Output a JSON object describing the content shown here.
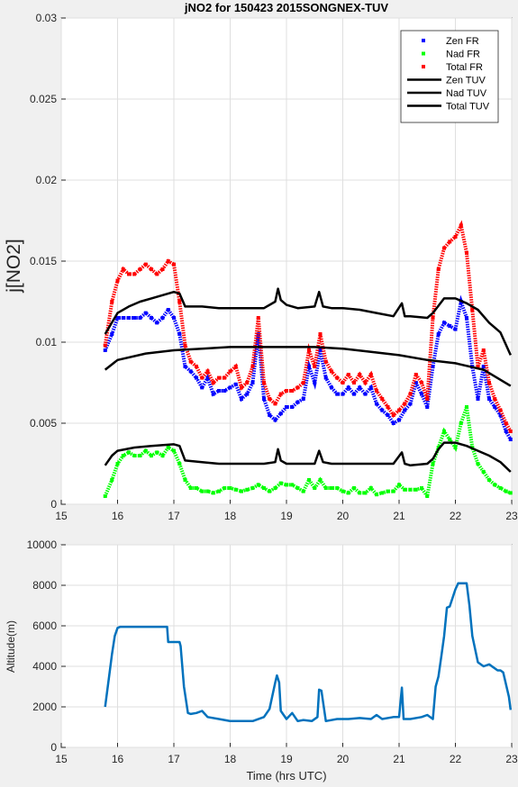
{
  "chart_data": [
    {
      "type": "scatter",
      "title": "jNO2 for 150423 2015SONGNEX-TUV",
      "xlabel": "",
      "ylabel": "j[NO2]",
      "xlim": [
        15,
        23
      ],
      "ylim": [
        0,
        0.03
      ],
      "xticks": [
        "15",
        "16",
        "17",
        "18",
        "19",
        "20",
        "21",
        "22",
        "23"
      ],
      "yticks": [
        "0",
        "0.005",
        "0.01",
        "0.015",
        "0.02",
        "0.025",
        "0.03"
      ],
      "grid": true,
      "legend": "top-right",
      "series": [
        {
          "name": "Zen FR",
          "kind": "points",
          "color": "#0000ff",
          "x": [
            15.78,
            15.9,
            16.0,
            16.1,
            16.2,
            16.3,
            16.4,
            16.5,
            16.6,
            16.7,
            16.8,
            16.9,
            17.0,
            17.1,
            17.2,
            17.3,
            17.4,
            17.5,
            17.6,
            17.7,
            17.8,
            17.9,
            18.0,
            18.1,
            18.2,
            18.3,
            18.4,
            18.5,
            18.6,
            18.7,
            18.8,
            18.9,
            19.0,
            19.1,
            19.2,
            19.3,
            19.4,
            19.5,
            19.6,
            19.7,
            19.8,
            19.9,
            20.0,
            20.1,
            20.2,
            20.3,
            20.4,
            20.5,
            20.6,
            20.7,
            20.8,
            20.9,
            21.0,
            21.1,
            21.2,
            21.3,
            21.4,
            21.5,
            21.6,
            21.7,
            21.8,
            21.9,
            22.0,
            22.1,
            22.2,
            22.3,
            22.4,
            22.5,
            22.6,
            22.7,
            22.8,
            22.9,
            22.98
          ],
          "y": [
            0.0095,
            0.0105,
            0.0115,
            0.0115,
            0.0115,
            0.0115,
            0.0115,
            0.0118,
            0.0115,
            0.0112,
            0.0115,
            0.012,
            0.0115,
            0.0105,
            0.0085,
            0.0082,
            0.0078,
            0.0072,
            0.0078,
            0.0068,
            0.007,
            0.007,
            0.0072,
            0.0074,
            0.0065,
            0.0068,
            0.0075,
            0.0105,
            0.0065,
            0.0055,
            0.0052,
            0.0056,
            0.006,
            0.006,
            0.0063,
            0.0065,
            0.0085,
            0.0075,
            0.0095,
            0.0078,
            0.0072,
            0.0068,
            0.0068,
            0.0072,
            0.0068,
            0.0072,
            0.0068,
            0.0072,
            0.0062,
            0.0058,
            0.0055,
            0.005,
            0.0052,
            0.0058,
            0.0062,
            0.0075,
            0.0068,
            0.006,
            0.0085,
            0.0105,
            0.0112,
            0.011,
            0.0108,
            0.0125,
            0.0115,
            0.0085,
            0.0065,
            0.0085,
            0.0065,
            0.006,
            0.0055,
            0.0045,
            0.004
          ]
        },
        {
          "name": "Nad FR",
          "kind": "points",
          "color": "#00ff00",
          "x": [
            15.78,
            15.9,
            16.0,
            16.1,
            16.2,
            16.3,
            16.4,
            16.5,
            16.6,
            16.7,
            16.8,
            16.9,
            17.0,
            17.1,
            17.2,
            17.3,
            17.4,
            17.5,
            17.6,
            17.7,
            17.8,
            17.9,
            18.0,
            18.1,
            18.2,
            18.3,
            18.4,
            18.5,
            18.6,
            18.7,
            18.8,
            18.9,
            19.0,
            19.1,
            19.2,
            19.3,
            19.4,
            19.5,
            19.6,
            19.7,
            19.8,
            19.9,
            20.0,
            20.1,
            20.2,
            20.3,
            20.4,
            20.5,
            20.6,
            20.7,
            20.8,
            20.9,
            21.0,
            21.1,
            21.2,
            21.3,
            21.4,
            21.5,
            21.6,
            21.7,
            21.8,
            21.9,
            22.0,
            22.1,
            22.2,
            22.3,
            22.4,
            22.5,
            22.6,
            22.7,
            22.8,
            22.9,
            22.98
          ],
          "y": [
            0.0005,
            0.0015,
            0.0025,
            0.003,
            0.0032,
            0.003,
            0.003,
            0.0033,
            0.003,
            0.0032,
            0.003,
            0.0035,
            0.0033,
            0.0025,
            0.0015,
            0.001,
            0.001,
            0.0008,
            0.0008,
            0.0007,
            0.0008,
            0.001,
            0.001,
            0.0009,
            0.0008,
            0.0009,
            0.001,
            0.0012,
            0.001,
            0.0008,
            0.001,
            0.0013,
            0.0012,
            0.0012,
            0.001,
            0.0008,
            0.0015,
            0.001,
            0.0015,
            0.001,
            0.001,
            0.001,
            0.0008,
            0.0007,
            0.001,
            0.0007,
            0.0007,
            0.001,
            0.0006,
            0.0007,
            0.0008,
            0.0008,
            0.0012,
            0.0009,
            0.0009,
            0.0009,
            0.001,
            0.0005,
            0.0025,
            0.0035,
            0.0045,
            0.004,
            0.0035,
            0.005,
            0.006,
            0.0035,
            0.0025,
            0.002,
            0.0015,
            0.0012,
            0.001,
            0.0008,
            0.0007
          ]
        },
        {
          "name": "Total FR",
          "kind": "points",
          "color": "#ff0000",
          "x": [
            15.78,
            15.9,
            16.0,
            16.1,
            16.2,
            16.3,
            16.4,
            16.5,
            16.6,
            16.7,
            16.8,
            16.9,
            17.0,
            17.1,
            17.2,
            17.3,
            17.4,
            17.5,
            17.6,
            17.7,
            17.8,
            17.9,
            18.0,
            18.1,
            18.2,
            18.3,
            18.4,
            18.5,
            18.6,
            18.7,
            18.8,
            18.9,
            19.0,
            19.1,
            19.2,
            19.3,
            19.4,
            19.5,
            19.6,
            19.7,
            19.8,
            19.9,
            20.0,
            20.1,
            20.2,
            20.3,
            20.4,
            20.5,
            20.6,
            20.7,
            20.8,
            20.9,
            21.0,
            21.1,
            21.2,
            21.3,
            21.4,
            21.5,
            21.6,
            21.7,
            21.8,
            21.9,
            22.0,
            22.1,
            22.2,
            22.3,
            22.4,
            22.5,
            22.6,
            22.7,
            22.8,
            22.9,
            22.98
          ],
          "y": [
            0.0098,
            0.0125,
            0.0138,
            0.0145,
            0.0142,
            0.0142,
            0.0145,
            0.0148,
            0.0145,
            0.0142,
            0.0145,
            0.015,
            0.0148,
            0.0125,
            0.0098,
            0.0088,
            0.0085,
            0.0078,
            0.0082,
            0.0075,
            0.0078,
            0.0078,
            0.0082,
            0.0085,
            0.0072,
            0.0075,
            0.0085,
            0.0115,
            0.0075,
            0.0065,
            0.0062,
            0.0068,
            0.007,
            0.007,
            0.0072,
            0.0075,
            0.0095,
            0.0085,
            0.0105,
            0.0088,
            0.0082,
            0.0078,
            0.0075,
            0.008,
            0.0075,
            0.008,
            0.0075,
            0.008,
            0.007,
            0.0065,
            0.006,
            0.0055,
            0.0058,
            0.0062,
            0.0068,
            0.008,
            0.0075,
            0.0065,
            0.0115,
            0.0145,
            0.0158,
            0.0162,
            0.0165,
            0.0172,
            0.0155,
            0.012,
            0.0085,
            0.0095,
            0.0075,
            0.0065,
            0.0058,
            0.005,
            0.0045
          ]
        },
        {
          "name": "Zen TUV",
          "kind": "line",
          "color": "#000000",
          "x": [
            15.78,
            16.0,
            16.2,
            16.4,
            16.6,
            16.8,
            17.0,
            17.1,
            17.2,
            17.5,
            17.8,
            18.0,
            18.3,
            18.6,
            18.8,
            18.85,
            18.9,
            19.0,
            19.2,
            19.5,
            19.58,
            19.65,
            19.8,
            20.0,
            20.3,
            20.6,
            20.9,
            21.05,
            21.1,
            21.2,
            21.5,
            21.6,
            21.8,
            22.0,
            22.2,
            22.4,
            22.6,
            22.8,
            22.98
          ],
          "y": [
            0.0105,
            0.0118,
            0.0122,
            0.0125,
            0.0127,
            0.0129,
            0.0131,
            0.013,
            0.0122,
            0.0122,
            0.0121,
            0.0121,
            0.0121,
            0.0121,
            0.0125,
            0.0133,
            0.0126,
            0.0123,
            0.0121,
            0.0122,
            0.0131,
            0.0122,
            0.0121,
            0.0121,
            0.012,
            0.0118,
            0.0116,
            0.0124,
            0.0116,
            0.0116,
            0.0115,
            0.0118,
            0.0127,
            0.0127,
            0.0124,
            0.012,
            0.0112,
            0.0106,
            0.0092
          ]
        },
        {
          "name": "Nad TUV",
          "kind": "line",
          "color": "#000000",
          "x": [
            15.78,
            16.0,
            16.5,
            17.0,
            17.5,
            18.0,
            18.5,
            19.0,
            19.5,
            20.0,
            20.5,
            21.0,
            21.5,
            22.0,
            22.5,
            22.98
          ],
          "y": [
            0.0083,
            0.0089,
            0.0093,
            0.0095,
            0.0096,
            0.0097,
            0.0097,
            0.0097,
            0.0097,
            0.0096,
            0.0094,
            0.0092,
            0.0089,
            0.0087,
            0.0083,
            0.0073
          ]
        },
        {
          "name": "Total TUV",
          "kind": "line",
          "color": "#000000",
          "x": [
            15.78,
            15.9,
            16.0,
            16.3,
            16.6,
            17.0,
            17.1,
            17.2,
            17.5,
            17.8,
            18.0,
            18.3,
            18.6,
            18.8,
            18.85,
            18.9,
            19.0,
            19.3,
            19.5,
            19.58,
            19.65,
            19.8,
            20.2,
            20.6,
            20.9,
            21.05,
            21.1,
            21.2,
            21.5,
            21.6,
            21.7,
            21.8,
            22.0,
            22.2,
            22.4,
            22.6,
            22.8,
            22.98
          ],
          "y": [
            0.0024,
            0.003,
            0.0033,
            0.0035,
            0.0036,
            0.0037,
            0.0036,
            0.0027,
            0.0026,
            0.0025,
            0.0025,
            0.0025,
            0.0025,
            0.0026,
            0.0034,
            0.0027,
            0.0025,
            0.0025,
            0.0025,
            0.0033,
            0.0026,
            0.0025,
            0.0025,
            0.0025,
            0.0025,
            0.0032,
            0.0025,
            0.0024,
            0.0025,
            0.0028,
            0.0034,
            0.0038,
            0.0038,
            0.0036,
            0.0033,
            0.003,
            0.0026,
            0.002
          ]
        }
      ]
    },
    {
      "type": "line",
      "title": "",
      "xlabel": "Time (hrs UTC)",
      "ylabel": "Altitude(m)",
      "xlim": [
        15,
        23
      ],
      "ylim": [
        0,
        10000
      ],
      "xticks": [
        "15",
        "16",
        "17",
        "18",
        "19",
        "20",
        "21",
        "22",
        "23"
      ],
      "yticks": [
        "0",
        "2000",
        "4000",
        "6000",
        "8000",
        "10000"
      ],
      "grid": true,
      "series": [
        {
          "color": "#0072bd",
          "x": [
            15.78,
            15.85,
            15.9,
            15.95,
            16.0,
            16.05,
            16.5,
            16.88,
            16.9,
            17.1,
            17.12,
            17.18,
            17.25,
            17.3,
            17.4,
            17.5,
            17.6,
            17.8,
            18.0,
            18.2,
            18.4,
            18.6,
            18.7,
            18.8,
            18.83,
            18.87,
            18.9,
            19.0,
            19.1,
            19.2,
            19.3,
            19.45,
            19.55,
            19.58,
            19.62,
            19.7,
            19.9,
            20.1,
            20.3,
            20.5,
            20.6,
            20.7,
            20.9,
            21.0,
            21.05,
            21.08,
            21.2,
            21.4,
            21.5,
            21.6,
            21.65,
            21.7,
            21.75,
            21.8,
            21.85,
            21.9,
            22.0,
            22.05,
            22.1,
            22.2,
            22.25,
            22.3,
            22.4,
            22.5,
            22.6,
            22.75,
            22.8,
            22.85,
            22.95,
            22.98
          ],
          "y": [
            2000,
            3500,
            4600,
            5500,
            5900,
            5950,
            5950,
            5950,
            5200,
            5200,
            5000,
            3000,
            1700,
            1650,
            1700,
            1800,
            1500,
            1400,
            1300,
            1300,
            1300,
            1500,
            1900,
            3200,
            3550,
            3200,
            1800,
            1400,
            1700,
            1300,
            1350,
            1300,
            1500,
            2850,
            2800,
            1300,
            1400,
            1400,
            1450,
            1400,
            1600,
            1400,
            1500,
            1500,
            2950,
            1400,
            1400,
            1500,
            1600,
            1400,
            3000,
            3500,
            4500,
            5500,
            6900,
            6950,
            7800,
            8100,
            8100,
            8100,
            7000,
            5500,
            4200,
            4000,
            4100,
            3800,
            3800,
            3700,
            2500,
            1850
          ]
        }
      ]
    }
  ]
}
